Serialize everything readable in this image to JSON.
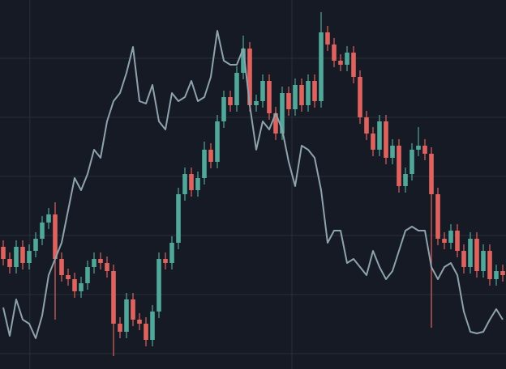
{
  "chart_data": {
    "type": "candlestick",
    "up_color": "#4fa89a",
    "down_color": "#e0625e",
    "grid_color": "#2a2e39",
    "background": "#161a25",
    "xlim": [
      -0.5,
      77.5
    ],
    "xticks": [
      4.1,
      44.5
    ],
    "ylim": [
      0,
      456
    ],
    "yticks": [
      19,
      92,
      165,
      238,
      311,
      384
    ],
    "grid": true,
    "open": [
      151,
      136,
      126,
      151,
      131,
      146,
      161,
      181,
      191,
      136,
      116,
      111,
      96,
      106,
      126,
      136,
      131,
      121,
      56,
      46,
      86,
      61,
      56,
      36,
      71,
      136,
      131,
      156,
      216,
      241,
      221,
      236,
      271,
      256,
      306,
      336,
      326,
      366,
      396,
      326,
      331,
      356,
      316,
      291,
      341,
      321,
      351,
      326,
      356,
      331,
      416,
      401,
      381,
      376,
      391,
      361,
      311,
      291,
      271,
      306,
      261,
      276,
      226,
      241,
      271,
      276,
      266,
      216,
      161,
      156,
      171,
      146,
      126,
      161,
      121,
      146,
      111,
      121
    ],
    "high": [
      159,
      144,
      159,
      159,
      154,
      169,
      189,
      199,
      206,
      144,
      124,
      119,
      114,
      134,
      144,
      144,
      139,
      129,
      64,
      94,
      94,
      69,
      64,
      79,
      144,
      144,
      164,
      224,
      249,
      249,
      244,
      281,
      279,
      314,
      344,
      344,
      374,
      412,
      404,
      339,
      364,
      364,
      324,
      349,
      349,
      359,
      359,
      364,
      364,
      441,
      424,
      409,
      389,
      399,
      399,
      369,
      319,
      299,
      314,
      314,
      284,
      284,
      249,
      279,
      299,
      284,
      274,
      224,
      169,
      179,
      179,
      154,
      169,
      169,
      154,
      154,
      129,
      129
    ],
    "low": [
      128,
      118,
      118,
      123,
      123,
      138,
      153,
      173,
      61,
      108,
      103,
      88,
      88,
      98,
      118,
      123,
      113,
      16,
      38,
      38,
      53,
      48,
      28,
      28,
      63,
      123,
      123,
      148,
      208,
      213,
      213,
      228,
      248,
      248,
      298,
      318,
      318,
      358,
      318,
      318,
      323,
      308,
      283,
      283,
      313,
      313,
      318,
      318,
      323,
      323,
      393,
      373,
      368,
      368,
      353,
      303,
      283,
      263,
      263,
      253,
      253,
      218,
      218,
      233,
      263,
      258,
      51,
      153,
      148,
      148,
      138,
      118,
      118,
      113,
      113,
      103,
      103,
      108
    ],
    "close": [
      136,
      126,
      151,
      131,
      146,
      161,
      181,
      191,
      136,
      116,
      111,
      96,
      106,
      126,
      136,
      131,
      121,
      56,
      46,
      86,
      61,
      56,
      36,
      71,
      136,
      131,
      156,
      216,
      241,
      221,
      236,
      271,
      256,
      306,
      336,
      326,
      366,
      396,
      326,
      331,
      356,
      316,
      291,
      341,
      321,
      351,
      326,
      356,
      331,
      416,
      401,
      381,
      376,
      391,
      361,
      311,
      291,
      271,
      306,
      261,
      276,
      226,
      241,
      271,
      276,
      266,
      216,
      161,
      156,
      171,
      146,
      126,
      161,
      121,
      146,
      111,
      121,
      116
    ],
    "line": {
      "color": "#8fa3ac",
      "values": [
        76,
        41,
        86,
        61,
        56,
        38,
        66,
        116,
        136,
        156,
        196,
        236,
        221,
        241,
        271,
        261,
        306,
        331,
        341,
        366,
        398,
        331,
        328,
        351,
        306,
        296,
        341,
        331,
        336,
        356,
        331,
        336,
        361,
        418,
        381,
        376,
        376,
        396,
        326,
        271,
        306,
        296,
        316,
        296,
        256,
        226,
        276,
        271,
        261,
        221,
        156,
        171,
        171,
        131,
        136,
        126,
        116,
        146,
        126,
        111,
        121,
        146,
        171,
        176,
        171,
        171,
        126,
        111,
        126,
        131,
        116,
        71,
        46,
        44,
        46,
        61,
        74,
        61
      ]
    }
  }
}
